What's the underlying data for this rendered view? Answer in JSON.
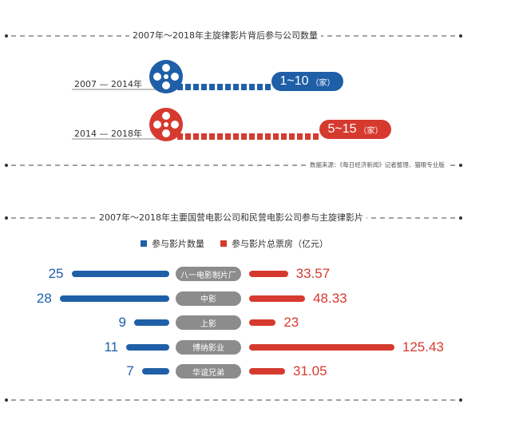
{
  "section1": {
    "title": "2007年～2018年主旋律影片背后参与公司数量",
    "rows": [
      {
        "period": "2007 — 2014年",
        "value": "1~10",
        "unit": "（家）",
        "color": "#1f5fa8"
      },
      {
        "period": "2014 — 2018年",
        "value": "5~15",
        "unit": "（家）",
        "color": "#d63a2f"
      }
    ],
    "source": "数据来源：《每日经济新闻》记者整理、猫眼专业版"
  },
  "section2": {
    "title": "2007年～2018年主要国营电影公司和民营电影公司参与主旋律影片",
    "legend": [
      {
        "label": "参与影片数量",
        "color": "#1f5fa8"
      },
      {
        "label": "参与影片总票房（亿元）",
        "color": "#d63a2f"
      }
    ]
  },
  "chart_data": {
    "type": "bar",
    "categories": [
      "八一电影制片厂",
      "中影",
      "上影",
      "博纳影业",
      "华谊兄弟"
    ],
    "series": [
      {
        "name": "参与影片数量",
        "values": [
          25,
          28,
          9,
          11,
          7
        ],
        "color": "#1f5fa8"
      },
      {
        "name": "参与影片总票房（亿元）",
        "values": [
          33.57,
          48.33,
          23,
          125.43,
          31.05
        ],
        "color": "#d63a2f"
      }
    ],
    "value_labels": {
      "count": [
        "25",
        "28",
        "9",
        "11",
        "7"
      ],
      "boxoffice": [
        "33.57",
        "48.33",
        "23",
        "125.43",
        "31.05"
      ]
    }
  }
}
